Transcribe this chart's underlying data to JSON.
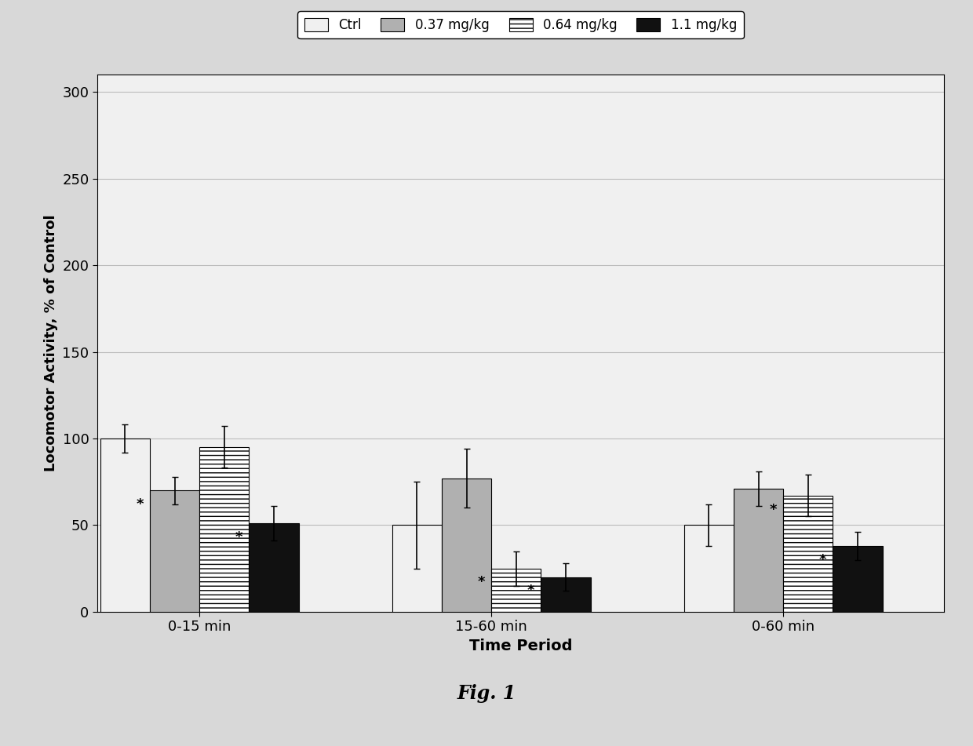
{
  "groups": [
    "0-15 min",
    "15-60 min",
    "0-60 min"
  ],
  "series": [
    "Ctrl",
    "0.37 mg/kg",
    "0.64 mg/kg",
    "1.1 mg/kg"
  ],
  "values": [
    [
      100,
      70,
      95,
      51
    ],
    [
      50,
      77,
      25,
      20
    ],
    [
      50,
      71,
      67,
      38
    ]
  ],
  "errors": [
    [
      8,
      8,
      12,
      10
    ],
    [
      25,
      17,
      10,
      8
    ],
    [
      12,
      10,
      12,
      8
    ]
  ],
  "bar_colors": [
    "#f0f0f0",
    "#b0b0b0",
    "#ffffff",
    "#111111"
  ],
  "hatches": [
    "",
    "",
    "-----",
    ""
  ],
  "ylabel": "Locomotor Activity, % of Control",
  "xlabel": "Time Period",
  "ylim": [
    0,
    310
  ],
  "yticks": [
    0,
    50,
    100,
    150,
    200,
    250,
    300
  ],
  "figure_caption": "Fig. 1",
  "legend_labels": [
    "Ctrl",
    "0.37 mg/kg",
    "0.64 mg/kg",
    "1.1 mg/kg"
  ],
  "star_annotations": {
    "0-15 min": {
      "0.37 mg/kg": true,
      "0.64 mg/kg": false,
      "1.1 mg/kg": true
    },
    "15-60 min": {
      "0.37 mg/kg": false,
      "0.64 mg/kg": true,
      "1.1 mg/kg": true
    },
    "0-60 min": {
      "0.37 mg/kg": false,
      "0.64 mg/kg": true,
      "1.1 mg/kg": true
    }
  },
  "figure_bg": "#d8d8d8",
  "chart_bg": "#f0f0f0",
  "grid_color": "#bbbbbb",
  "bar_width": 0.17,
  "group_positions": [
    0.35,
    1.35,
    2.35
  ]
}
